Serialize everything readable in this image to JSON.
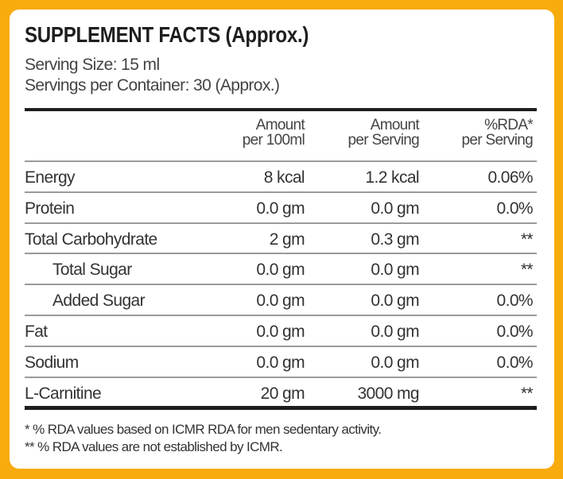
{
  "title": "SUPPLEMENT FACTS (Approx.)",
  "serving_size": "Serving Size: 15 ml",
  "servings_per_container": "Servings per Container: 30 (Approx.)",
  "headers": [
    {
      "line1": "Amount",
      "line2": "per 100ml"
    },
    {
      "line1": "Amount",
      "line2": "per Serving"
    },
    {
      "line1": "%RDA*",
      "line2": "per Serving"
    }
  ],
  "rows": [
    {
      "name": "Energy",
      "per100": "8 kcal",
      "perServing": "1.2 kcal",
      "rda": "0.06%"
    },
    {
      "name": "Protein",
      "per100": "0.0 gm",
      "perServing": "0.0 gm",
      "rda": "0.0%"
    },
    {
      "name": "Total Carbohydrate",
      "per100": "2 gm",
      "perServing": "0.3 gm",
      "rda": "**"
    },
    {
      "name": "Total Sugar",
      "per100": "0.0 gm",
      "perServing": "0.0 gm",
      "rda": "**"
    },
    {
      "name": "Added Sugar",
      "per100": "0.0 gm",
      "perServing": "0.0 gm",
      "rda": "0.0%"
    },
    {
      "name": "Fat",
      "per100": "0.0 gm",
      "perServing": "0.0 gm",
      "rda": "0.0%"
    },
    {
      "name": "Sodium",
      "per100": "0.0 gm",
      "perServing": "0.0 gm",
      "rda": "0.0%"
    },
    {
      "name": "L-Carnitine",
      "per100": "20 gm",
      "perServing": "3000 mg",
      "rda": "**"
    }
  ],
  "footnotes": [
    "* % RDA values based on ICMR RDA for men sedentary activity.",
    "** % RDA values are not established by ICMR."
  ],
  "colors": {
    "border": "#f8ab0c",
    "text": "#333333"
  }
}
